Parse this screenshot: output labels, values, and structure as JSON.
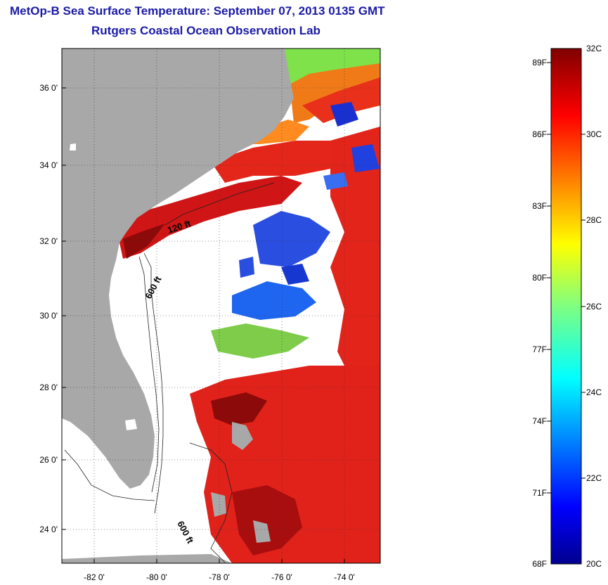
{
  "title": "MetOp-B Sea Surface Temperature:  September 07, 2013 0135 GMT",
  "subtitle": "Rutgers Coastal Ocean Observation Lab",
  "map": {
    "y_ticks": [
      "36 0'",
      "34 0'",
      "32 0'",
      "30 0'",
      "28 0'",
      "26 0'",
      "24 0'"
    ],
    "x_ticks": [
      "-82 0'",
      "-80 0'",
      "-78 0'",
      "-76 0'",
      "-74 0'"
    ],
    "lat_range": [
      23,
      37.1
    ],
    "lon_range": [
      -83,
      -72.8
    ],
    "grid": "dotted",
    "land_color": "#a8a8a8",
    "contour_labels": [
      "120 ft",
      "600 ft",
      "600 ft"
    ]
  },
  "colorbar": {
    "fahrenheit_labels": [
      "89F",
      "86F",
      "83F",
      "80F",
      "77F",
      "74F",
      "71F",
      "68F"
    ],
    "celsius_labels": [
      "32C",
      "30C",
      "28C",
      "26C",
      "24C",
      "22C",
      "20C"
    ],
    "range_c": [
      20,
      32
    ],
    "range_f": [
      68,
      89.6
    ],
    "colormap": "jet"
  }
}
